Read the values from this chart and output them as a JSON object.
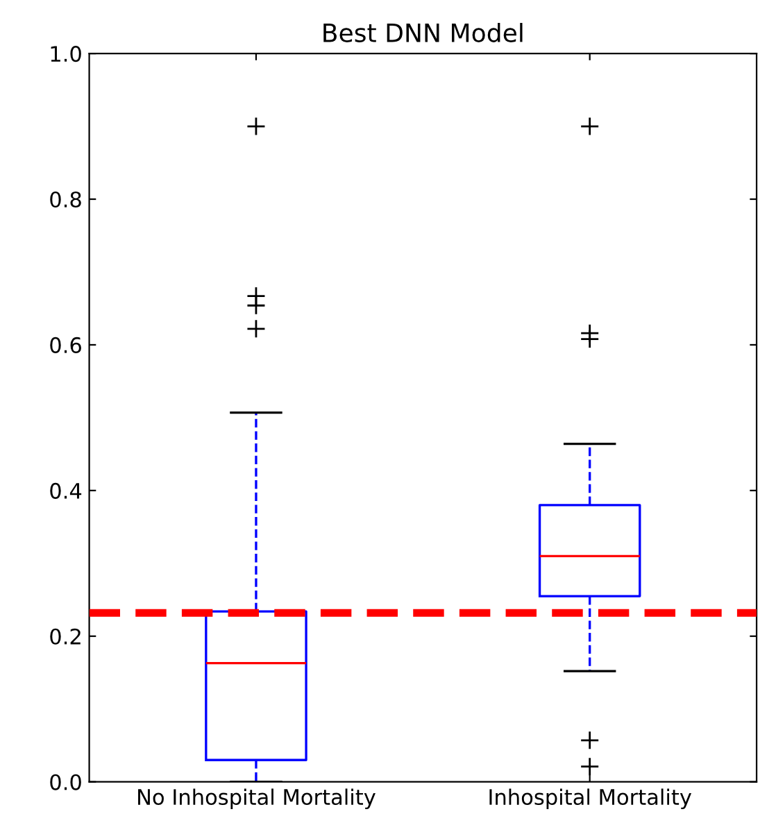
{
  "chart_data": {
    "type": "box",
    "title": "Best DNN Model",
    "categories": [
      "No Inhospital Mortality",
      "Inhospital Mortality"
    ],
    "boxes": [
      {
        "low": 0.0,
        "q1": 0.03,
        "median": 0.163,
        "q3": 0.234,
        "high": 0.507,
        "outliers": [
          0.9,
          0.667,
          0.654,
          0.622
        ]
      },
      {
        "low": 0.152,
        "q1": 0.255,
        "median": 0.31,
        "q3": 0.38,
        "high": 0.464,
        "outliers": [
          0.9,
          0.616,
          0.608,
          0.057,
          0.021
        ]
      }
    ],
    "color": "#0000ff",
    "ylim": [
      0,
      1
    ],
    "yticks": [
      {
        "value": 0,
        "label": "0.0"
      },
      {
        "value": 0.2,
        "label": "0.2"
      },
      {
        "value": 0.4,
        "label": "0.4"
      },
      {
        "value": 0.6,
        "label": "0.6"
      },
      {
        "value": 0.8,
        "label": "0.8"
      },
      {
        "value": 1,
        "label": "1.0"
      }
    ],
    "ref_lines": [
      {
        "axis": "y",
        "value": 0.232,
        "label": null,
        "color": "#ff0000",
        "line_style": "dashed"
      }
    ],
    "grid": false,
    "legend": false
  }
}
